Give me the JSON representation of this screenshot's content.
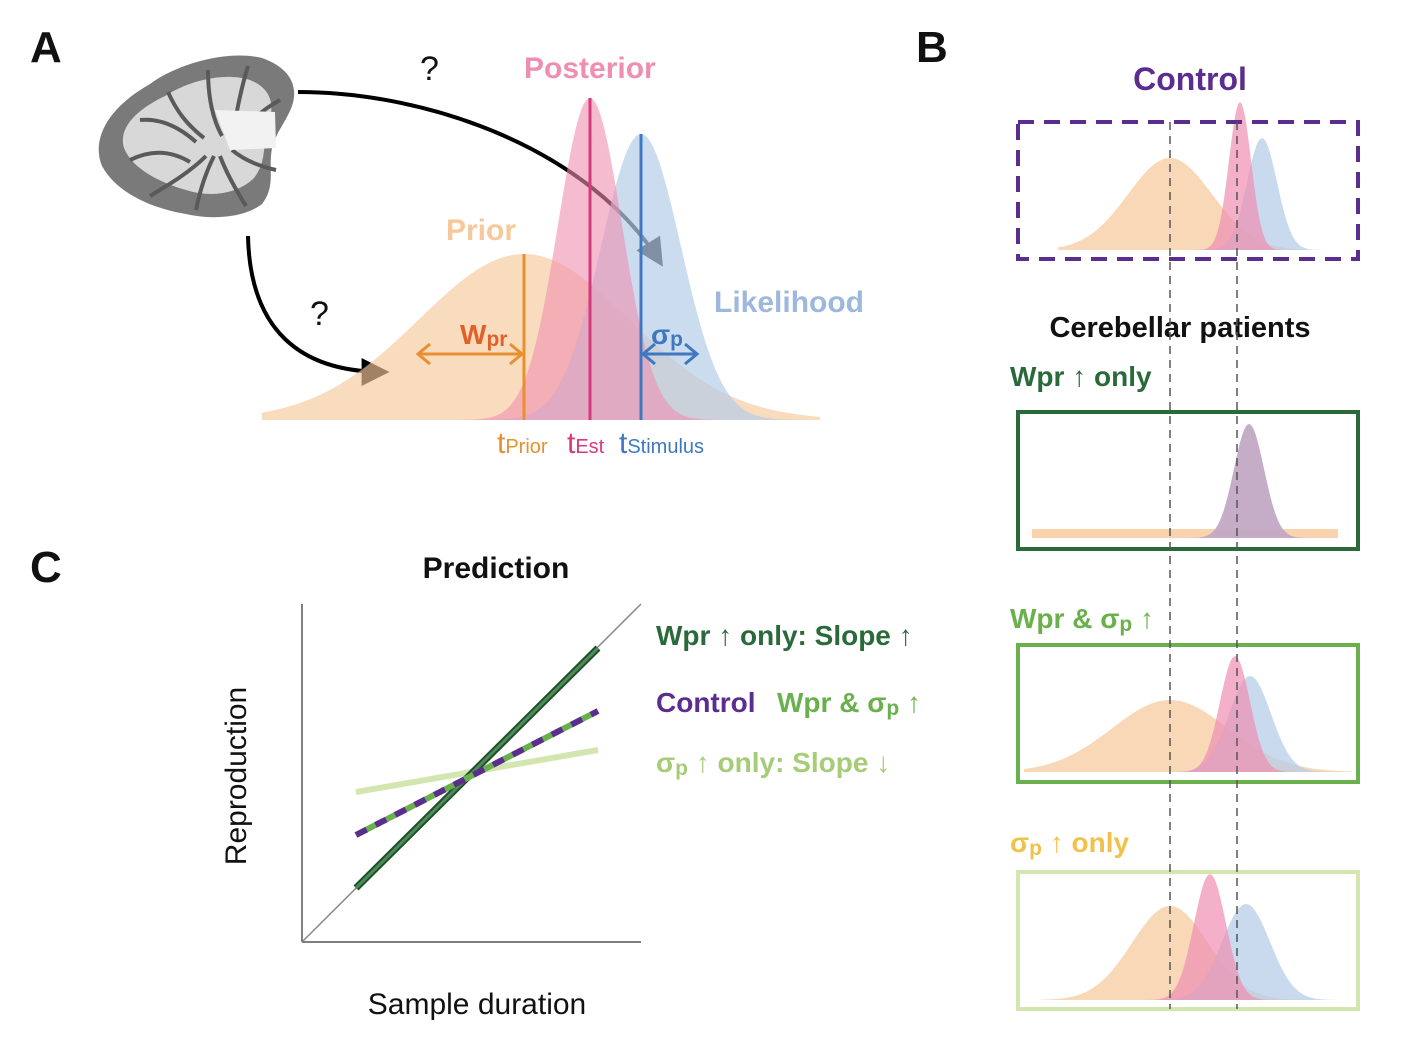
{
  "panel_a": {
    "letter": "A",
    "question_top": "?",
    "question_left": "?",
    "prior_label": "Prior",
    "posterior_label": "Posterior",
    "likelihood_label": "Likelihood",
    "wpr_main": "W",
    "wpr_sub": "pr",
    "sigma_main": "σ",
    "sigma_sub": "p",
    "t_prior_main": "t",
    "t_prior_sub": "Prior",
    "t_est_main": "t",
    "t_est_sub": "Est",
    "t_stim_main": "t",
    "t_stim_sub": "Stimulus"
  },
  "panel_b": {
    "letter": "B",
    "control_title": "Control",
    "patients_title": "Cerebellar patients",
    "wpr_only_label": "Wpr ↑ only",
    "wpr_sigma_label_a": "Wpr & σ",
    "wpr_sigma_label_sub": "p",
    "wpr_sigma_label_b": " ↑",
    "sigma_only_label_a": "σ",
    "sigma_only_label_sub": "p",
    "sigma_only_label_b": " ↑ only"
  },
  "panel_c": {
    "letter": "C",
    "title": "Prediction",
    "xlabel": "Sample duration",
    "ylabel": "Reproduction",
    "legend_wpr_only": "Wpr ↑ only: Slope ↑",
    "legend_control": "Control",
    "legend_wpr_sigma_a": "Wpr & σ",
    "legend_wpr_sigma_sub": "p",
    "legend_wpr_sigma_b": " ↑",
    "legend_sigma_a": "σ",
    "legend_sigma_sub": "p",
    "legend_sigma_b": " ↑ only: Slope ↓"
  },
  "colors": {
    "prior": "#f6c89a",
    "posterior": "#ee8fb1",
    "likelihood": "#b7cde8",
    "prior_line": "#e8902f",
    "posterior_line": "#d63a7a",
    "likelihood_line": "#3f78c0",
    "wpr_label": "#e0602a",
    "control": "#5b2d8e",
    "dark_green": "#2a6a3a",
    "mid_green": "#6ab04c",
    "light_green": "#d4e6b0",
    "light_green_text": "#a6cc78",
    "sigma_only_text": "#f0c24a"
  }
}
